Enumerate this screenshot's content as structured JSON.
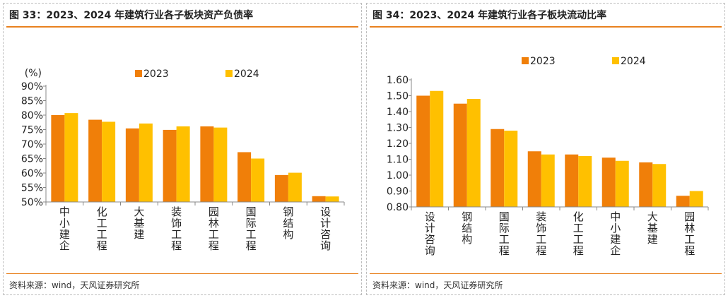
{
  "left_panel": {
    "title": "图 33：2023、2024 年建筑行业各子板块资产负债率",
    "source": "资料来源：wind，天风证券研究所"
  },
  "right_panel": {
    "title": "图 34：2023、2024 年建筑行业各子板块流动比率",
    "source": "资料来源：wind，天风证券研究所"
  },
  "colors": {
    "series_2023": "#f07f09",
    "series_2024": "#ffc000",
    "accent": "#e8811f"
  },
  "chart_data": [
    {
      "type": "bar",
      "title": "",
      "unit_label": "(%)",
      "categories": [
        "中小建企",
        "化工工程",
        "大基建",
        "装饰工程",
        "园林工程",
        "国际工程",
        "钢结构",
        "设计咨询"
      ],
      "series": [
        {
          "name": "2023",
          "values": [
            80.0,
            78.4,
            75.4,
            74.9,
            76.1,
            67.2,
            59.3,
            52.0
          ]
        },
        {
          "name": "2024",
          "values": [
            80.7,
            77.7,
            77.1,
            76.1,
            75.7,
            65.0,
            60.1,
            51.9
          ]
        }
      ],
      "ylim": [
        50,
        90
      ],
      "yticks": [
        "50%",
        "55%",
        "60%",
        "65%",
        "70%",
        "75%",
        "80%",
        "85%",
        "90%"
      ],
      "legend": "top-center",
      "grid": false
    },
    {
      "type": "bar",
      "title": "",
      "categories": [
        "设计咨询",
        "钢结构",
        "国际工程",
        "装饰工程",
        "化工工程",
        "中小建企",
        "大基建",
        "园林工程"
      ],
      "series": [
        {
          "name": "2023",
          "values": [
            1.5,
            1.45,
            1.29,
            1.15,
            1.13,
            1.11,
            1.08,
            0.87
          ]
        },
        {
          "name": "2024",
          "values": [
            1.53,
            1.48,
            1.28,
            1.13,
            1.12,
            1.09,
            1.07,
            0.9
          ]
        }
      ],
      "ylim": [
        0.8,
        1.6
      ],
      "yticks": [
        "0.80",
        "0.90",
        "1.00",
        "1.10",
        "1.20",
        "1.30",
        "1.40",
        "1.50",
        "1.60"
      ],
      "legend": "top-center",
      "grid": false
    }
  ]
}
